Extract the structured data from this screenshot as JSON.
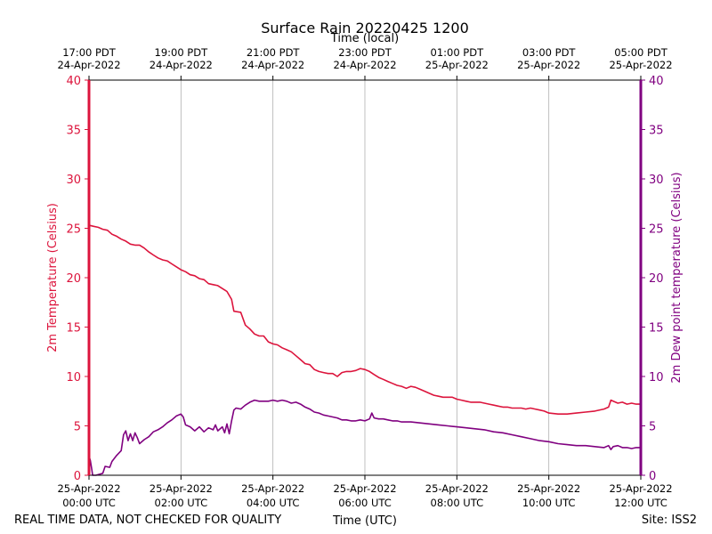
{
  "footer": {
    "disclaimer": "REAL TIME DATA, NOT CHECKED FOR QUALITY",
    "site": "Site: ISS2"
  },
  "chart_data": {
    "type": "line",
    "title": "Surface Rain 20220425 1200",
    "xlabel": "Time (UTC)",
    "x2label": "Time (local)",
    "ylabel": "2m Temperature (Celsius)",
    "y2label": "2m Dew point temperature (Celsius)",
    "x_unit": "hours after 25-Apr-2022 00:00 UTC",
    "xlim": [
      0,
      12
    ],
    "ylim": [
      0,
      40
    ],
    "y2lim": [
      0,
      40
    ],
    "grid": "vertical",
    "colors": {
      "temperature": "#dc143c",
      "dewpoint": "#800080"
    },
    "yticks": [
      0,
      5,
      10,
      15,
      20,
      25,
      30,
      35,
      40
    ],
    "xticks_utc": [
      {
        "x": 0,
        "line1": "25-Apr-2022",
        "line2": "00:00 UTC"
      },
      {
        "x": 2,
        "line1": "25-Apr-2022",
        "line2": "02:00 UTC"
      },
      {
        "x": 4,
        "line1": "25-Apr-2022",
        "line2": "04:00 UTC"
      },
      {
        "x": 6,
        "line1": "25-Apr-2022",
        "line2": "06:00 UTC"
      },
      {
        "x": 8,
        "line1": "25-Apr-2022",
        "line2": "08:00 UTC"
      },
      {
        "x": 10,
        "line1": "25-Apr-2022",
        "line2": "10:00 UTC"
      },
      {
        "x": 12,
        "line1": "25-Apr-2022",
        "line2": "12:00 UTC"
      }
    ],
    "xticks_local": [
      {
        "x": 0,
        "line1": "17:00 PDT",
        "line2": "24-Apr-2022"
      },
      {
        "x": 2,
        "line1": "19:00 PDT",
        "line2": "24-Apr-2022"
      },
      {
        "x": 4,
        "line1": "21:00 PDT",
        "line2": "24-Apr-2022"
      },
      {
        "x": 6,
        "line1": "23:00 PDT",
        "line2": "24-Apr-2022"
      },
      {
        "x": 8,
        "line1": "01:00 PDT",
        "line2": "25-Apr-2022"
      },
      {
        "x": 10,
        "line1": "03:00 PDT",
        "line2": "25-Apr-2022"
      },
      {
        "x": 12,
        "line1": "05:00 PDT",
        "line2": "25-Apr-2022"
      }
    ],
    "series": [
      {
        "key": "temperature",
        "axis": "left",
        "points": [
          [
            0.0,
            0
          ],
          [
            0.01,
            25.3
          ],
          [
            0.1,
            25.2
          ],
          [
            0.2,
            25.1
          ],
          [
            0.3,
            24.9
          ],
          [
            0.4,
            24.8
          ],
          [
            0.5,
            24.4
          ],
          [
            0.6,
            24.2
          ],
          [
            0.7,
            23.9
          ],
          [
            0.8,
            23.7
          ],
          [
            0.9,
            23.4
          ],
          [
            1.0,
            23.3
          ],
          [
            1.1,
            23.3
          ],
          [
            1.2,
            23.0
          ],
          [
            1.3,
            22.6
          ],
          [
            1.4,
            22.3
          ],
          [
            1.5,
            22.0
          ],
          [
            1.6,
            21.8
          ],
          [
            1.7,
            21.7
          ],
          [
            1.8,
            21.4
          ],
          [
            1.9,
            21.1
          ],
          [
            2.0,
            20.8
          ],
          [
            2.1,
            20.6
          ],
          [
            2.2,
            20.3
          ],
          [
            2.3,
            20.2
          ],
          [
            2.4,
            19.9
          ],
          [
            2.5,
            19.8
          ],
          [
            2.6,
            19.4
          ],
          [
            2.7,
            19.3
          ],
          [
            2.8,
            19.2
          ],
          [
            2.9,
            18.9
          ],
          [
            3.0,
            18.6
          ],
          [
            3.1,
            17.8
          ],
          [
            3.15,
            16.6
          ],
          [
            3.3,
            16.5
          ],
          [
            3.4,
            15.2
          ],
          [
            3.5,
            14.8
          ],
          [
            3.6,
            14.3
          ],
          [
            3.7,
            14.1
          ],
          [
            3.8,
            14.1
          ],
          [
            3.9,
            13.5
          ],
          [
            4.0,
            13.3
          ],
          [
            4.1,
            13.2
          ],
          [
            4.2,
            12.9
          ],
          [
            4.3,
            12.7
          ],
          [
            4.4,
            12.5
          ],
          [
            4.5,
            12.1
          ],
          [
            4.6,
            11.7
          ],
          [
            4.7,
            11.3
          ],
          [
            4.8,
            11.2
          ],
          [
            4.9,
            10.7
          ],
          [
            5.0,
            10.5
          ],
          [
            5.1,
            10.4
          ],
          [
            5.2,
            10.3
          ],
          [
            5.3,
            10.3
          ],
          [
            5.4,
            10.0
          ],
          [
            5.5,
            10.4
          ],
          [
            5.6,
            10.5
          ],
          [
            5.7,
            10.5
          ],
          [
            5.8,
            10.6
          ],
          [
            5.9,
            10.8
          ],
          [
            6.0,
            10.7
          ],
          [
            6.1,
            10.5
          ],
          [
            6.2,
            10.2
          ],
          [
            6.3,
            9.9
          ],
          [
            6.4,
            9.7
          ],
          [
            6.5,
            9.5
          ],
          [
            6.6,
            9.3
          ],
          [
            6.7,
            9.1
          ],
          [
            6.8,
            9.0
          ],
          [
            6.9,
            8.8
          ],
          [
            7.0,
            9.0
          ],
          [
            7.1,
            8.9
          ],
          [
            7.2,
            8.7
          ],
          [
            7.3,
            8.5
          ],
          [
            7.4,
            8.3
          ],
          [
            7.5,
            8.1
          ],
          [
            7.6,
            8.0
          ],
          [
            7.7,
            7.9
          ],
          [
            7.8,
            7.9
          ],
          [
            7.9,
            7.9
          ],
          [
            8.0,
            7.7
          ],
          [
            8.1,
            7.6
          ],
          [
            8.2,
            7.5
          ],
          [
            8.3,
            7.4
          ],
          [
            8.4,
            7.4
          ],
          [
            8.5,
            7.4
          ],
          [
            8.6,
            7.3
          ],
          [
            8.7,
            7.2
          ],
          [
            8.8,
            7.1
          ],
          [
            8.9,
            7.0
          ],
          [
            9.0,
            6.9
          ],
          [
            9.1,
            6.9
          ],
          [
            9.2,
            6.8
          ],
          [
            9.3,
            6.8
          ],
          [
            9.4,
            6.8
          ],
          [
            9.5,
            6.7
          ],
          [
            9.6,
            6.8
          ],
          [
            9.7,
            6.7
          ],
          [
            9.8,
            6.6
          ],
          [
            9.9,
            6.5
          ],
          [
            10.0,
            6.3
          ],
          [
            10.2,
            6.2
          ],
          [
            10.4,
            6.2
          ],
          [
            10.6,
            6.3
          ],
          [
            10.8,
            6.4
          ],
          [
            11.0,
            6.5
          ],
          [
            11.2,
            6.7
          ],
          [
            11.3,
            6.9
          ],
          [
            11.35,
            7.6
          ],
          [
            11.5,
            7.3
          ],
          [
            11.6,
            7.4
          ],
          [
            11.7,
            7.2
          ],
          [
            11.8,
            7.3
          ],
          [
            11.9,
            7.2
          ],
          [
            12.0,
            7.2
          ]
        ]
      },
      {
        "key": "dewpoint",
        "axis": "right",
        "points": [
          [
            0.0,
            0
          ],
          [
            0.01,
            1.8
          ],
          [
            0.03,
            1.5
          ],
          [
            0.06,
            0.6
          ],
          [
            0.08,
            0.0
          ],
          [
            0.15,
            0.0
          ],
          [
            0.3,
            0.2
          ],
          [
            0.35,
            0.9
          ],
          [
            0.45,
            0.8
          ],
          [
            0.5,
            1.4
          ],
          [
            0.6,
            2.0
          ],
          [
            0.7,
            2.5
          ],
          [
            0.75,
            4.1
          ],
          [
            0.8,
            4.5
          ],
          [
            0.85,
            3.5
          ],
          [
            0.9,
            4.2
          ],
          [
            0.95,
            3.5
          ],
          [
            1.0,
            4.3
          ],
          [
            1.05,
            3.8
          ],
          [
            1.1,
            3.2
          ],
          [
            1.2,
            3.6
          ],
          [
            1.3,
            3.9
          ],
          [
            1.4,
            4.4
          ],
          [
            1.5,
            4.6
          ],
          [
            1.6,
            4.9
          ],
          [
            1.7,
            5.3
          ],
          [
            1.8,
            5.6
          ],
          [
            1.9,
            6.0
          ],
          [
            2.0,
            6.2
          ],
          [
            2.05,
            5.9
          ],
          [
            2.1,
            5.1
          ],
          [
            2.2,
            4.9
          ],
          [
            2.3,
            4.5
          ],
          [
            2.4,
            4.9
          ],
          [
            2.5,
            4.4
          ],
          [
            2.6,
            4.8
          ],
          [
            2.7,
            4.6
          ],
          [
            2.75,
            5.1
          ],
          [
            2.8,
            4.5
          ],
          [
            2.9,
            4.9
          ],
          [
            2.95,
            4.3
          ],
          [
            3.0,
            5.2
          ],
          [
            3.05,
            4.2
          ],
          [
            3.1,
            5.5
          ],
          [
            3.15,
            6.6
          ],
          [
            3.2,
            6.8
          ],
          [
            3.3,
            6.7
          ],
          [
            3.4,
            7.1
          ],
          [
            3.5,
            7.4
          ],
          [
            3.6,
            7.6
          ],
          [
            3.7,
            7.5
          ],
          [
            3.8,
            7.5
          ],
          [
            3.9,
            7.5
          ],
          [
            4.0,
            7.6
          ],
          [
            4.1,
            7.5
          ],
          [
            4.2,
            7.6
          ],
          [
            4.3,
            7.5
          ],
          [
            4.4,
            7.3
          ],
          [
            4.5,
            7.4
          ],
          [
            4.6,
            7.2
          ],
          [
            4.7,
            6.9
          ],
          [
            4.8,
            6.7
          ],
          [
            4.9,
            6.4
          ],
          [
            5.0,
            6.3
          ],
          [
            5.1,
            6.1
          ],
          [
            5.2,
            6.0
          ],
          [
            5.3,
            5.9
          ],
          [
            5.4,
            5.8
          ],
          [
            5.5,
            5.6
          ],
          [
            5.6,
            5.6
          ],
          [
            5.7,
            5.5
          ],
          [
            5.8,
            5.5
          ],
          [
            5.9,
            5.6
          ],
          [
            6.0,
            5.5
          ],
          [
            6.1,
            5.7
          ],
          [
            6.15,
            6.3
          ],
          [
            6.2,
            5.8
          ],
          [
            6.3,
            5.7
          ],
          [
            6.4,
            5.7
          ],
          [
            6.5,
            5.6
          ],
          [
            6.6,
            5.5
          ],
          [
            6.7,
            5.5
          ],
          [
            6.8,
            5.4
          ],
          [
            6.9,
            5.4
          ],
          [
            7.0,
            5.4
          ],
          [
            7.2,
            5.3
          ],
          [
            7.4,
            5.2
          ],
          [
            7.6,
            5.1
          ],
          [
            7.8,
            5.0
          ],
          [
            8.0,
            4.9
          ],
          [
            8.2,
            4.8
          ],
          [
            8.4,
            4.7
          ],
          [
            8.6,
            4.6
          ],
          [
            8.8,
            4.4
          ],
          [
            9.0,
            4.3
          ],
          [
            9.2,
            4.1
          ],
          [
            9.4,
            3.9
          ],
          [
            9.6,
            3.7
          ],
          [
            9.8,
            3.5
          ],
          [
            10.0,
            3.4
          ],
          [
            10.2,
            3.2
          ],
          [
            10.4,
            3.1
          ],
          [
            10.6,
            3.0
          ],
          [
            10.8,
            3.0
          ],
          [
            11.0,
            2.9
          ],
          [
            11.2,
            2.8
          ],
          [
            11.3,
            3.0
          ],
          [
            11.35,
            2.6
          ],
          [
            11.4,
            2.9
          ],
          [
            11.5,
            3.0
          ],
          [
            11.6,
            2.8
          ],
          [
            11.7,
            2.8
          ],
          [
            11.8,
            2.7
          ],
          [
            11.9,
            2.8
          ],
          [
            12.0,
            2.8
          ]
        ]
      }
    ]
  }
}
